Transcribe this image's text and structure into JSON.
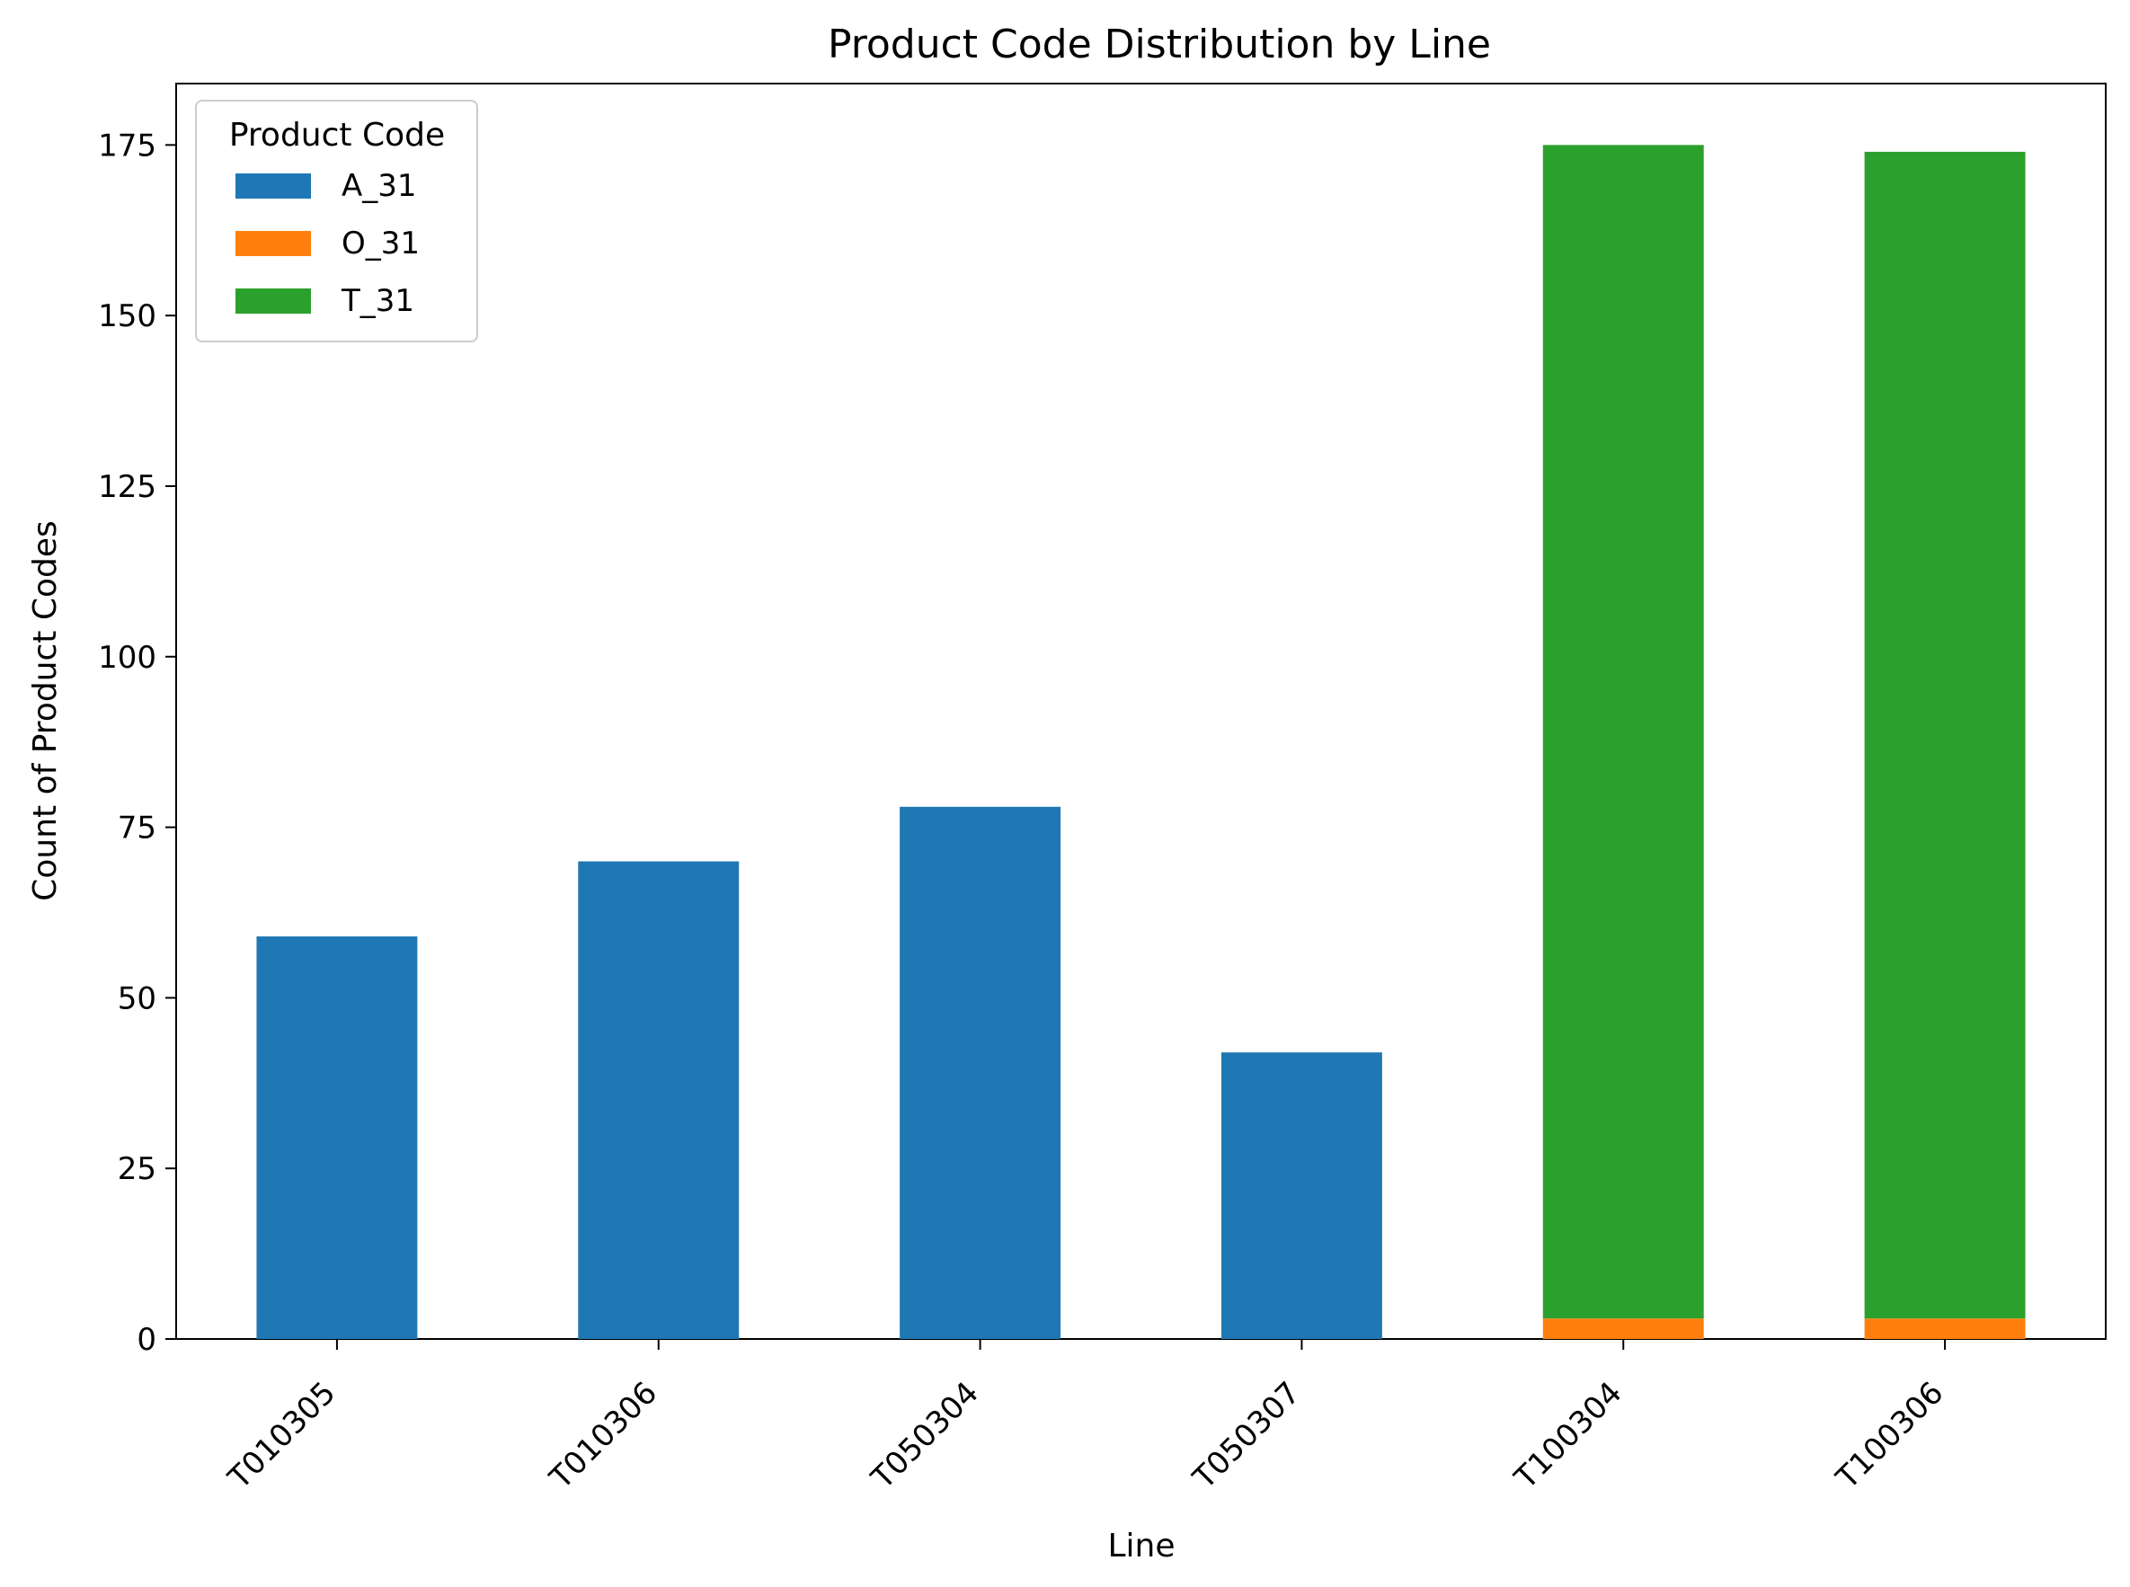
{
  "chart_data": {
    "type": "bar",
    "stacked": true,
    "title": "Product Code Distribution by Line",
    "xlabel": "Line",
    "ylabel": "Count of Product Codes",
    "categories": [
      "T010305",
      "T010306",
      "T050304",
      "T050307",
      "T100304",
      "T100306"
    ],
    "series": [
      {
        "name": "A_31",
        "values": [
          59,
          70,
          78,
          42,
          0,
          0
        ],
        "color": "#1f77b4"
      },
      {
        "name": "O_31",
        "values": [
          0,
          0,
          0,
          0,
          3,
          3
        ],
        "color": "#ff7f0e"
      },
      {
        "name": "T_31",
        "values": [
          0,
          0,
          0,
          0,
          172,
          171
        ],
        "color": "#2ca02c"
      }
    ],
    "ylim": [
      0,
      184
    ],
    "yticks": [
      0,
      25,
      50,
      75,
      100,
      125,
      150,
      175
    ],
    "legend": {
      "title": "Product Code",
      "position": "top-left"
    },
    "grid": false
  }
}
